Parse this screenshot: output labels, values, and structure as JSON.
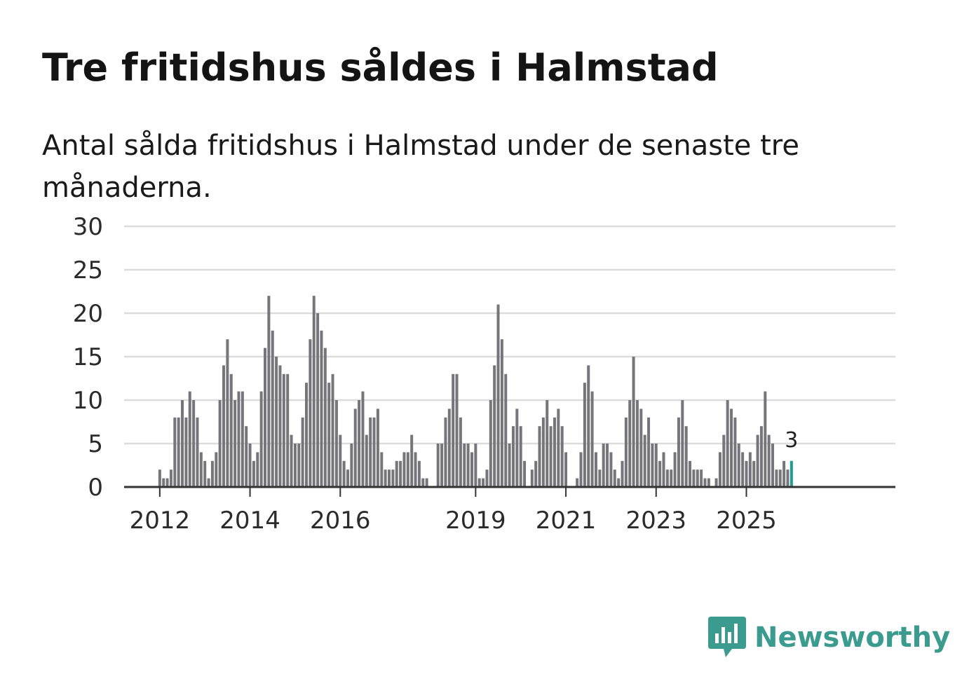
{
  "header": {
    "title": "Tre fritidshus såldes i Halmstad",
    "subtitle": "Antal sålda fritidshus i Halmstad under de senaste tre månaderna."
  },
  "brand": {
    "name": "Newsworthy",
    "color": "#3c9b8f"
  },
  "colors": {
    "bar": "#76757b",
    "highlight": "#1f9c92",
    "grid": "#dcdcdc",
    "axis": "#333333"
  },
  "chart_data": {
    "type": "bar",
    "title": "Tre fritidshus såldes i Halmstad",
    "subtitle": "Antal sålda fritidshus i Halmstad under de senaste tre månaderna.",
    "xlabel": "",
    "ylabel": "",
    "ylim": [
      0,
      30
    ],
    "yticks": [
      0,
      5,
      10,
      15,
      20,
      25,
      30
    ],
    "grid": true,
    "start": "2011-01",
    "frequency": "monthly",
    "xticks": [
      {
        "label": "2012",
        "index": 12
      },
      {
        "label": "2014",
        "index": 36
      },
      {
        "label": "2016",
        "index": 60
      },
      {
        "label": "2019",
        "index": 96
      },
      {
        "label": "2021",
        "index": 120
      },
      {
        "label": "2023",
        "index": 144
      },
      {
        "label": "2025",
        "index": 168
      }
    ],
    "values": [
      0,
      0,
      0,
      0,
      0,
      0,
      0,
      0,
      0,
      0,
      0,
      0,
      2,
      1,
      1,
      2,
      8,
      8,
      10,
      8,
      11,
      10,
      8,
      4,
      3,
      1,
      3,
      4,
      10,
      14,
      17,
      13,
      10,
      11,
      11,
      7,
      5,
      3,
      4,
      11,
      16,
      22,
      18,
      15,
      14,
      13,
      13,
      6,
      5,
      5,
      8,
      12,
      17,
      22,
      20,
      18,
      16,
      12,
      13,
      10,
      6,
      3,
      2,
      5,
      9,
      10,
      11,
      6,
      8,
      8,
      9,
      4,
      2,
      2,
      2,
      3,
      3,
      4,
      4,
      6,
      4,
      3,
      1,
      1,
      0,
      0,
      5,
      5,
      8,
      9,
      13,
      13,
      8,
      5,
      5,
      4,
      5,
      1,
      1,
      2,
      10,
      14,
      21,
      17,
      13,
      5,
      7,
      9,
      7,
      3,
      0,
      2,
      3,
      7,
      8,
      10,
      7,
      8,
      9,
      7,
      4,
      0,
      0,
      1,
      4,
      12,
      14,
      11,
      4,
      2,
      5,
      5,
      4,
      2,
      1,
      3,
      8,
      10,
      15,
      10,
      9,
      6,
      8,
      5,
      5,
      3,
      4,
      2,
      2,
      4,
      8,
      10,
      7,
      3,
      2,
      2,
      2,
      1,
      1,
      0,
      1,
      4,
      6,
      10,
      9,
      8,
      5,
      4,
      3,
      4,
      3,
      6,
      7,
      11,
      6,
      5,
      2,
      2,
      3,
      2,
      3
    ],
    "highlight_last": true,
    "annotations": [
      {
        "label": "3",
        "index": 180
      }
    ]
  }
}
